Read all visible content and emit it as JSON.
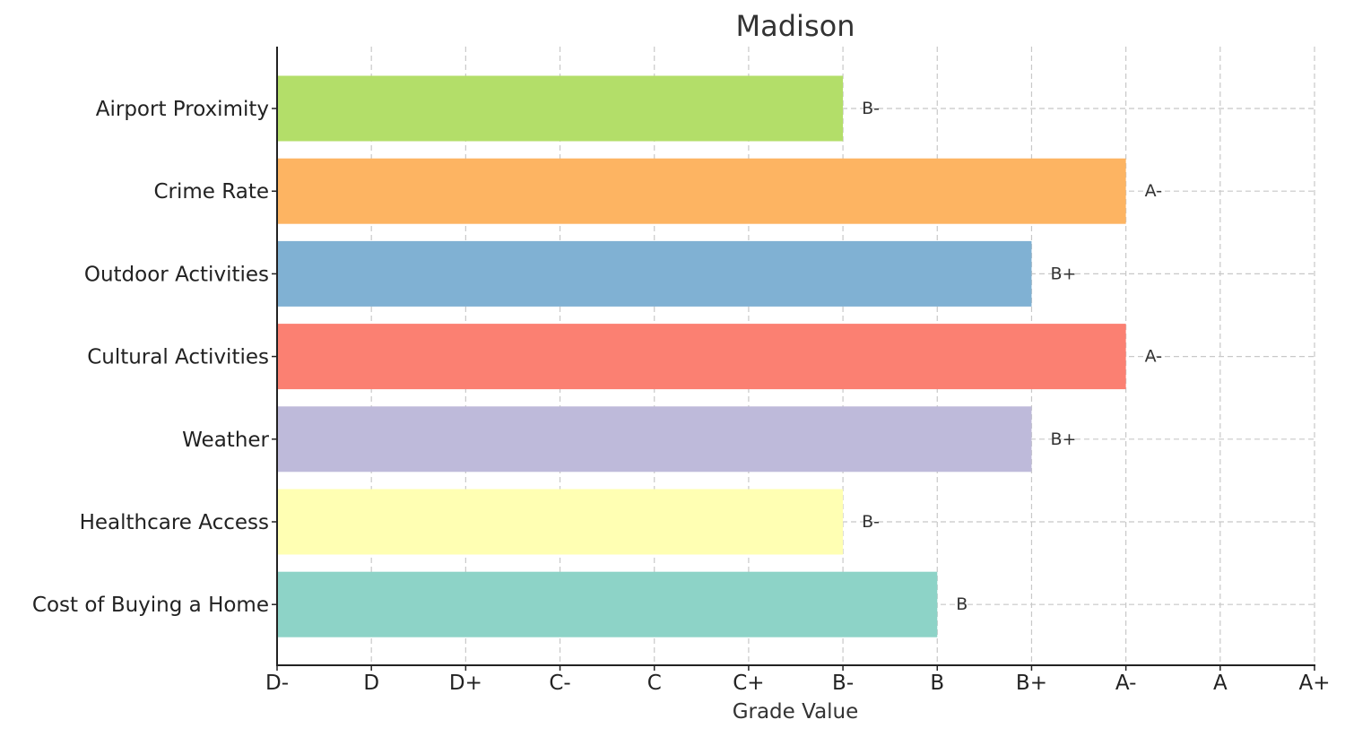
{
  "chart_data": {
    "type": "bar",
    "orientation": "horizontal",
    "title": "Madison",
    "xlabel": "Grade Value",
    "ylabel": "",
    "x_tick_labels": [
      "D-",
      "D",
      "D+",
      "C-",
      "C",
      "C+",
      "B-",
      "B",
      "B+",
      "A-",
      "A",
      "A+"
    ],
    "xlim": [
      0,
      11
    ],
    "grid": true,
    "categories": [
      "Airport Proximity",
      "Crime Rate",
      "Outdoor Activities",
      "Cultural Activities",
      "Weather",
      "Healthcare Access",
      "Cost of Buying a Home"
    ],
    "values": [
      6,
      9,
      8,
      9,
      8,
      6,
      7
    ],
    "value_labels": [
      "B-",
      "A-",
      "B+",
      "A-",
      "B+",
      "B-",
      "B"
    ],
    "colors": [
      "#b3de69",
      "#fdb462",
      "#80b1d3",
      "#fb8072",
      "#bebada",
      "#ffffb3",
      "#8dd3c7"
    ]
  }
}
